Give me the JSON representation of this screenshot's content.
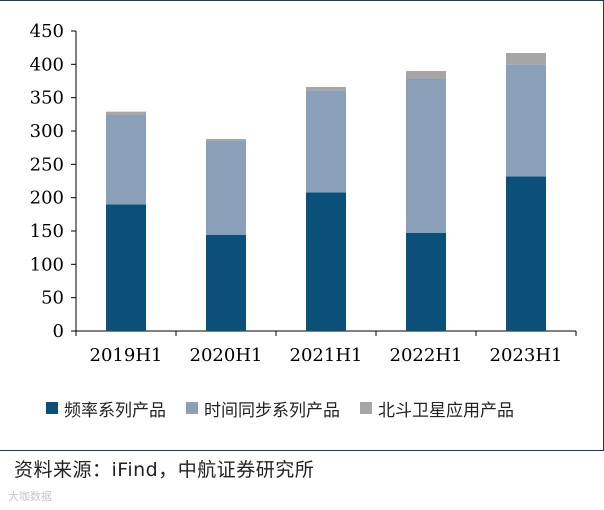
{
  "chart_data": {
    "type": "bar",
    "stacked": true,
    "categories": [
      "2019H1",
      "2020H1",
      "2021H1",
      "2022H1",
      "2023H1"
    ],
    "series": [
      {
        "name": "频率系列产品",
        "color": "#0b5078",
        "values": [
          190,
          144,
          208,
          147,
          232
        ]
      },
      {
        "name": "时间同步系列产品",
        "color": "#8aa0b8",
        "values": [
          134,
          142,
          153,
          231,
          168
        ]
      },
      {
        "name": "北斗卫星应用产品",
        "color": "#a6a6a6",
        "values": [
          5,
          2,
          5,
          12,
          17
        ]
      }
    ],
    "ylim": [
      0,
      450
    ],
    "yticks": [
      0,
      50,
      100,
      150,
      200,
      250,
      300,
      350,
      400,
      450
    ],
    "title": "",
    "xlabel": "",
    "ylabel": ""
  },
  "legend": [
    {
      "label": "频率系列产品",
      "color": "#0b5078"
    },
    {
      "label": "时间同步系列产品",
      "color": "#8aa0b8"
    },
    {
      "label": "北斗卫星应用产品",
      "color": "#a6a6a6"
    }
  ],
  "source": "资料来源：iFind，中航证券研究所",
  "watermark": "大咖数据"
}
